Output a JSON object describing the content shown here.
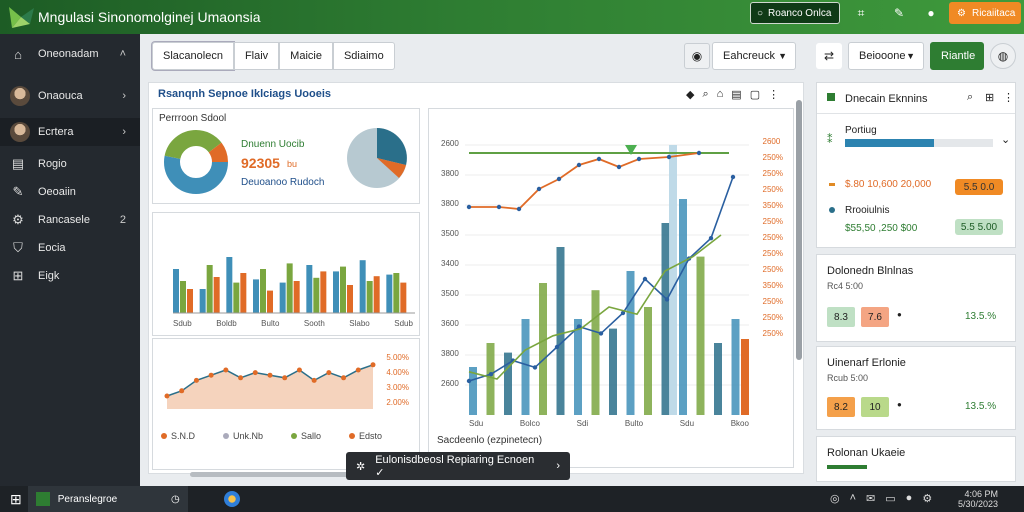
{
  "app": {
    "title": "Mngulasi Sinonomolginej Umaonsia"
  },
  "topbar": {
    "search_placeholder": "Roanco Onlca",
    "cta_label": "Ricaiitaca",
    "colors": {
      "bar_start": "#1d5c25",
      "bar_end": "#3f9a3c",
      "cta": "#f08a24"
    }
  },
  "sidebar": {
    "header": "Oneonadam",
    "items": [
      {
        "label": "Onaouca",
        "icon": "avatar",
        "chevron": "›"
      },
      {
        "label": "Ecrtera",
        "icon": "avatar",
        "chevron": "›"
      },
      {
        "label": "Rogio",
        "icon": "document-icon"
      },
      {
        "label": "Oeoaiin",
        "icon": "wrench-icon"
      },
      {
        "label": "Rancasele",
        "icon": "gear-icon",
        "badge": "2"
      },
      {
        "label": "Eocia",
        "icon": "shield-icon"
      },
      {
        "label": "Eigk",
        "icon": "grid-icon"
      }
    ]
  },
  "toolbar": {
    "tabs": [
      "Slacanolecn",
      "Flaiv",
      "Maicie",
      "Sdiaimo"
    ],
    "select_label": "Eahcreuck",
    "right_select": "Beiooone",
    "right_button": "Riantle"
  },
  "main": {
    "section_title": "Rsanqnh Sepnoe Iklciags Uooeis",
    "kpi_card": {
      "label": "Perrroon Sdool",
      "heading": "Dnuenn Uocib",
      "value": "92305",
      "unit": "bu",
      "subtitle": "Deuoanoo Rudoch"
    },
    "bar_chart_ticks": [
      "Sdub",
      "Boldb",
      "Bulto",
      "Sooth",
      "Slabo",
      "Sdub"
    ],
    "area_chart_legend": [
      "S.N.D",
      "Unk.Nb",
      "Sallo",
      "Edsto"
    ],
    "area_chart_right_labels": [
      "5.00%",
      "4.00%",
      "3.00%",
      "2.00%"
    ],
    "line_chart_xlabel": "Sacdeenlo (ezpinetecn)",
    "line_chart_left_ticks": [
      "2600",
      "3800",
      "3800",
      "3500",
      "3400",
      "3500",
      "3600",
      "3800",
      "2600"
    ],
    "line_chart_right_ticks": [
      "2600",
      "250%",
      "250%",
      "250%",
      "350%",
      "250%",
      "250%",
      "250%",
      "250%",
      "350%",
      "250%",
      "250%",
      "250%"
    ],
    "line_chart_bottom_ticks": [
      "Sdu",
      "Bolco",
      "Sdi",
      "Bulto",
      "Sdu",
      "Bkoo"
    ]
  },
  "chart_data": {
    "type": "bar",
    "series": [
      {
        "name": "blue",
        "values": [
          55,
          30,
          70,
          42,
          38,
          60,
          52,
          66,
          48
        ]
      },
      {
        "name": "green",
        "values": [
          40,
          60,
          38,
          55,
          62,
          44,
          58,
          40,
          50
        ]
      },
      {
        "name": "orange",
        "values": [
          30,
          45,
          50,
          28,
          40,
          52,
          35,
          46,
          38
        ]
      }
    ],
    "area_values": [
      10,
      14,
      22,
      26,
      30,
      24,
      28,
      26,
      24,
      30,
      22,
      28,
      24,
      30,
      34
    ],
    "line_values": [
      10,
      12,
      16,
      14,
      20,
      26,
      24,
      30,
      40,
      34,
      46,
      52,
      70
    ],
    "line2_values": [
      12,
      10,
      18,
      22,
      24,
      30,
      28,
      40,
      44,
      50
    ],
    "colors": {
      "blue": "#3f8fb8",
      "green": "#7aa63f",
      "orange": "#e06b27",
      "teal": "#2a6f8a"
    }
  },
  "right": {
    "panel1": {
      "title": "Dnecain Eknnins",
      "sub_label": "Portiug",
      "row1_label": "$.80 10,600 20,000",
      "row1_pill": "5.5 0.0",
      "row2_label": "Rrooiulnis",
      "row3_label": "$55,50 ,250 $00",
      "row3_pill": "5.5 5.00"
    },
    "panel2": {
      "title": "Dolonedn Blnlnas",
      "sub": "Rc4 5:00",
      "box1": "8.3",
      "box2": "7.6",
      "value": "13.5.%"
    },
    "panel3": {
      "title": "Uinenarf Erlonie",
      "sub": "Rcub 5:00",
      "box1": "8.2",
      "box2": "10",
      "value": "13.5.%"
    },
    "panel4": {
      "title": "Rolonan Ukaeie"
    }
  },
  "tooltip": {
    "text": "Eulonisdbeosl Repiaring Ecnoen ✓"
  },
  "taskbar": {
    "app_label": "Peranslegroe",
    "time": "4:06 PM",
    "date": "5/30/2023"
  }
}
